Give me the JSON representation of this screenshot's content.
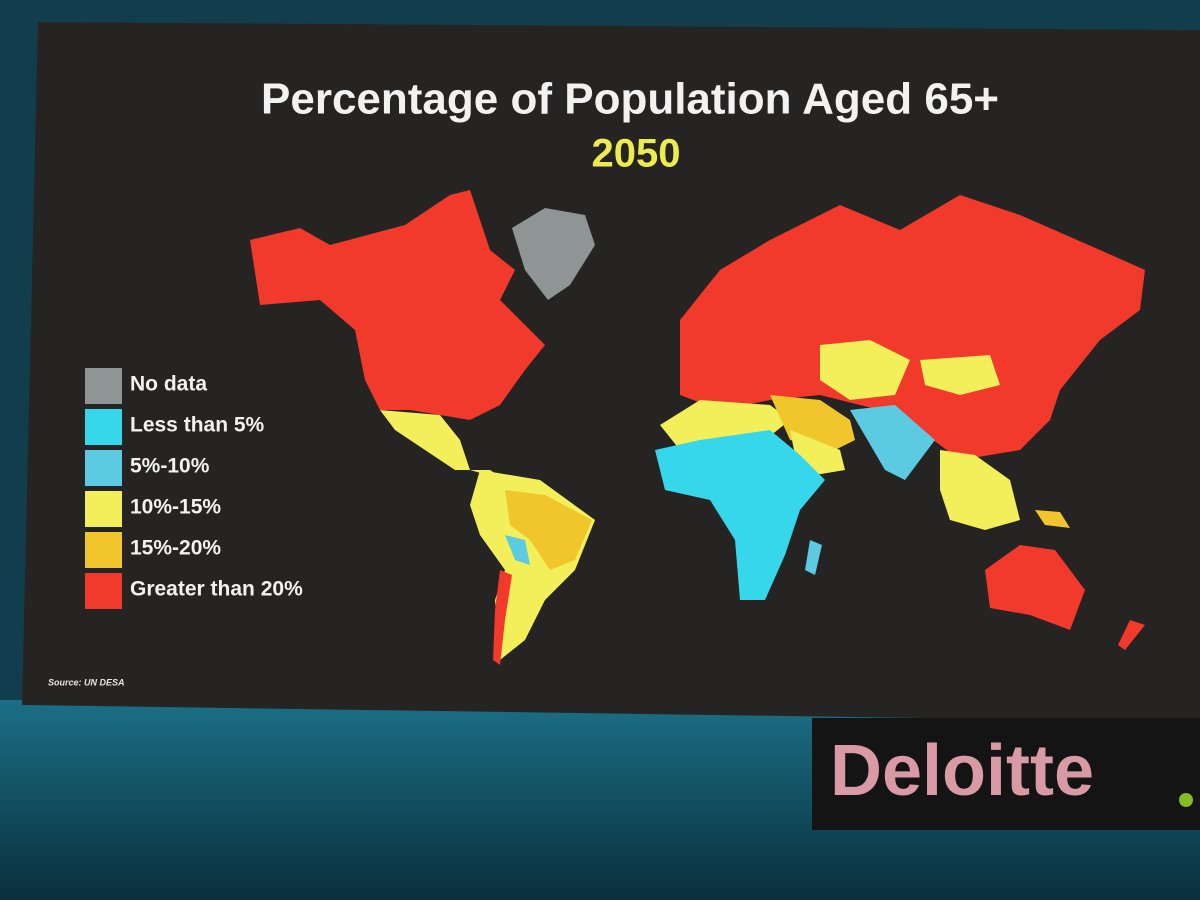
{
  "header": {
    "title": "Percentage of Population Aged 65+",
    "subtitle": "2050"
  },
  "legend": {
    "items": [
      {
        "label": "No data",
        "color": "#8f9494"
      },
      {
        "label": "Less than 5%",
        "color": "#36d7ea"
      },
      {
        "label": "5%-10%",
        "color": "#5ccbe2"
      },
      {
        "label": "10%-15%",
        "color": "#f3ef5a"
      },
      {
        "label": "15%-20%",
        "color": "#f0c62c"
      },
      {
        "label": "Greater than 20%",
        "color": "#f1392c"
      }
    ]
  },
  "source": "Source: UN DESA",
  "logo": {
    "text": "Deloitte",
    "dot_color": "#86bc25"
  }
}
